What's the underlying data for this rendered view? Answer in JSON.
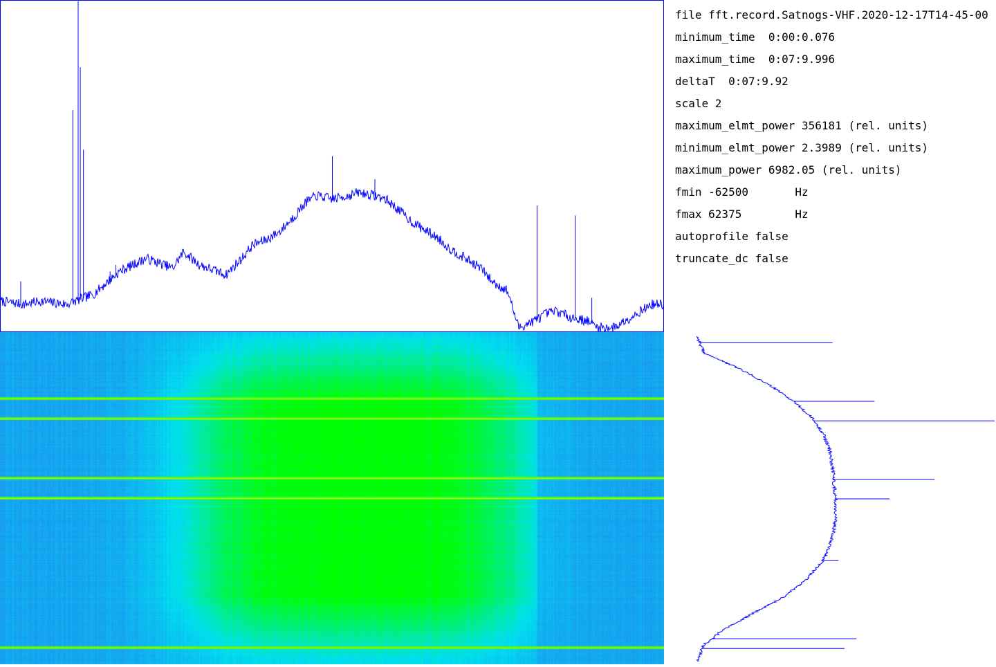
{
  "info": {
    "file": "file fft.record.Satnogs-VHF.2020-12-17T14-45-00",
    "minimum_time": "minimum_time  0:00:0.076",
    "maximum_time": "maximum_time  0:07:9.996",
    "deltaT": "deltaT  0:07:9.92",
    "scale": "scale 2",
    "maximum_elmt_power": "maximum_elmt_power 356181 (rel. units)",
    "minimum_elmt_power": "minimum_elmt_power 2.3989 (rel. units)",
    "maximum_power": "maximum_power 6982.05 (rel. units)",
    "fmin": "fmin -62500       Hz",
    "fmax": "fmax 62375        Hz",
    "autoprofile": "autoprofile false",
    "truncate_dc": "truncate_dc false"
  },
  "colors": {
    "trace": "#0000ff",
    "frame": "#0000ff",
    "waterfall_low": "#1e8ff0",
    "waterfall_mid": "#00e0f0",
    "waterfall_high": "#00ff00",
    "hline": "#d8e800"
  },
  "chart_data": [
    {
      "type": "line",
      "xlim": [
        -62500,
        62375
      ],
      "x": [
        -62500,
        -58000,
        -55000,
        -50000,
        -45000,
        -40000,
        -35000,
        -30000,
        -28000,
        -25000,
        -20000,
        -17000,
        -15000,
        -12000,
        -10000,
        -7000,
        -5000,
        -3000,
        0,
        3000,
        5000,
        8000,
        10000,
        13000,
        15000,
        18000,
        20000,
        22000,
        25000,
        28000,
        30000,
        33000,
        35000,
        38000,
        40000,
        42000,
        45000,
        48000,
        50000,
        53000,
        55000,
        58000,
        60000,
        62375
      ],
      "values": [
        0.09,
        0.08,
        0.09,
        0.08,
        0.11,
        0.18,
        0.22,
        0.19,
        0.24,
        0.2,
        0.17,
        0.22,
        0.26,
        0.28,
        0.3,
        0.35,
        0.39,
        0.41,
        0.4,
        0.41,
        0.42,
        0.41,
        0.4,
        0.36,
        0.33,
        0.3,
        0.28,
        0.25,
        0.22,
        0.19,
        0.15,
        0.12,
        0.01,
        0.03,
        0.05,
        0.06,
        0.04,
        0.03,
        0.01,
        0.01,
        0.03,
        0.06,
        0.08,
        0.08
      ],
      "spikes": [
        {
          "x": -58600,
          "value": 0.15
        },
        {
          "x": -48800,
          "value": 0.67
        },
        {
          "x": -47800,
          "value": 1.0
        },
        {
          "x": -47400,
          "value": 0.8
        },
        {
          "x": -46800,
          "value": 0.55
        },
        {
          "x": -41800,
          "value": 0.18
        },
        {
          "x": -40700,
          "value": 0.2
        },
        {
          "x": 0,
          "value": 0.53
        },
        {
          "x": 8000,
          "value": 0.46
        },
        {
          "x": 38500,
          "value": 0.38
        },
        {
          "x": 45700,
          "value": 0.35
        },
        {
          "x": 48800,
          "value": 0.1
        }
      ]
    },
    {
      "type": "heatmap",
      "xlim": [
        -62500,
        62375
      ],
      "band_center": 5000,
      "band_halfwidth": 33000,
      "bright_rows": [
        0.2,
        0.26,
        0.44,
        0.5,
        0.95
      ]
    },
    {
      "type": "line",
      "orientation": "vertical",
      "ylim": [
        0,
        1
      ],
      "y": [
        0.0,
        0.05,
        0.1,
        0.15,
        0.2,
        0.25,
        0.3,
        0.35,
        0.4,
        0.45,
        0.5,
        0.55,
        0.6,
        0.65,
        0.7,
        0.75,
        0.8,
        0.85,
        0.9,
        0.95,
        1.0
      ],
      "values": [
        0.01,
        0.03,
        0.15,
        0.25,
        0.33,
        0.39,
        0.43,
        0.45,
        0.46,
        0.465,
        0.47,
        0.47,
        0.465,
        0.45,
        0.42,
        0.37,
        0.3,
        0.2,
        0.1,
        0.03,
        0.01
      ],
      "spikes": [
        {
          "y": 0.02,
          "value": 0.46
        },
        {
          "y": 0.2,
          "value": 0.6
        },
        {
          "y": 0.26,
          "value": 1.0
        },
        {
          "y": 0.44,
          "value": 0.8
        },
        {
          "y": 0.5,
          "value": 0.65
        },
        {
          "y": 0.69,
          "value": 0.48
        },
        {
          "y": 0.93,
          "value": 0.54
        },
        {
          "y": 0.96,
          "value": 0.5
        }
      ]
    }
  ]
}
